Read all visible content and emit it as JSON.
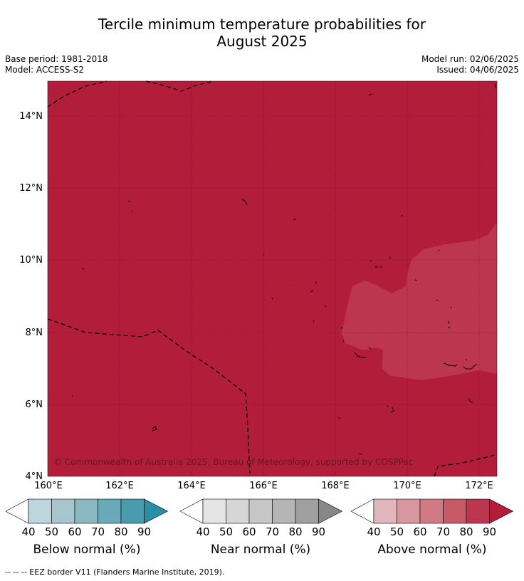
{
  "title_line1": "Tercile minimum temperature probabilities for",
  "title_line2": "August 2025",
  "base_period": "Base period: 1981-2018",
  "model": "Model: ACCESS-S2",
  "model_run": "Model run: 02/06/2025",
  "issued": "Issued: 04/06/2025",
  "map": {
    "lon_range": [
      160,
      172.5
    ],
    "lat_range": [
      4,
      15
    ],
    "lat_labels": [
      "14°N",
      "12°N",
      "10°N",
      "8°N",
      "6°N",
      "4°N"
    ],
    "lon_labels": [
      "160°E",
      "162°E",
      "164°E",
      "166°E",
      "168°E",
      "170°E",
      "172°E"
    ],
    "background_category": "Above normal 80-90%",
    "background_color": "#b21e3a",
    "patch_category": "Above normal 70-80%",
    "patch_color": "#bd3650",
    "credit": "© Commonwealth of Australia 2025, Bureau of Meteorology, supported by COSPPac"
  },
  "legend": {
    "ticks": [
      "40",
      "50",
      "60",
      "70",
      "80",
      "90"
    ],
    "below": {
      "title": "Below normal (%)",
      "colors": [
        "#ffffff",
        "#bdd5dc",
        "#a5c6cd",
        "#89b7c2",
        "#6aa9b7",
        "#4a9bae",
        "#2a8ea4"
      ]
    },
    "near": {
      "title": "Near normal (%)",
      "colors": [
        "#ffffff",
        "#e5e5e5",
        "#d6d6d6",
        "#c6c6c6",
        "#b5b5b5",
        "#a0a0a0",
        "#888888"
      ]
    },
    "above": {
      "title": "Above normal (%)",
      "colors": [
        "#ffffff",
        "#e1b7be",
        "#d8979f",
        "#d27a84",
        "#c85a67",
        "#bd3650",
        "#b21e3a"
      ]
    }
  },
  "footer": "--  --  -- EEZ border V11 (Flanders Marine Institute, 2019)."
}
